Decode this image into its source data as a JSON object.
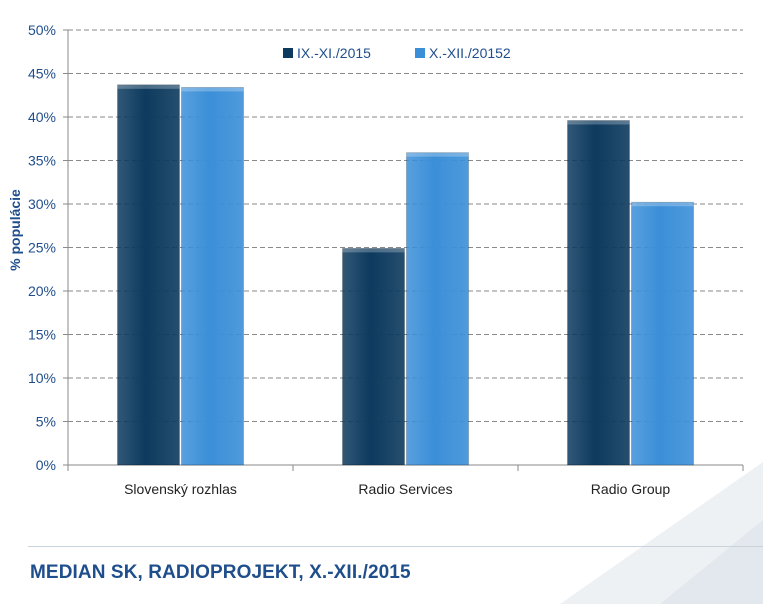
{
  "chart_data": {
    "type": "bar",
    "categories": [
      "Slovenský rozhlas",
      "Radio Services",
      "Radio Group"
    ],
    "series": [
      {
        "name": "IX.-XI./2015",
        "values": [
          43.7,
          24.9,
          39.6
        ],
        "color": "#0d3a5e"
      },
      {
        "name": "X.-XII./20152",
        "values": [
          43.4,
          35.9,
          30.2
        ],
        "color": "#3b8fd8"
      }
    ],
    "ylabel": "% populácie",
    "xlabel": "",
    "ylim": [
      0,
      50
    ],
    "yticks": [
      "0%",
      "5%",
      "10%",
      "15%",
      "20%",
      "25%",
      "30%",
      "35%",
      "40%",
      "45%",
      "50%"
    ],
    "grid": true,
    "legend_position": "top-right"
  },
  "footer": {
    "title": "MEDIAN SK, RADIOPROJEKT, X.-XII./2015"
  },
  "colors": {
    "axis_text": "#1f4e8c",
    "footer_text": "#1f4e8c"
  }
}
